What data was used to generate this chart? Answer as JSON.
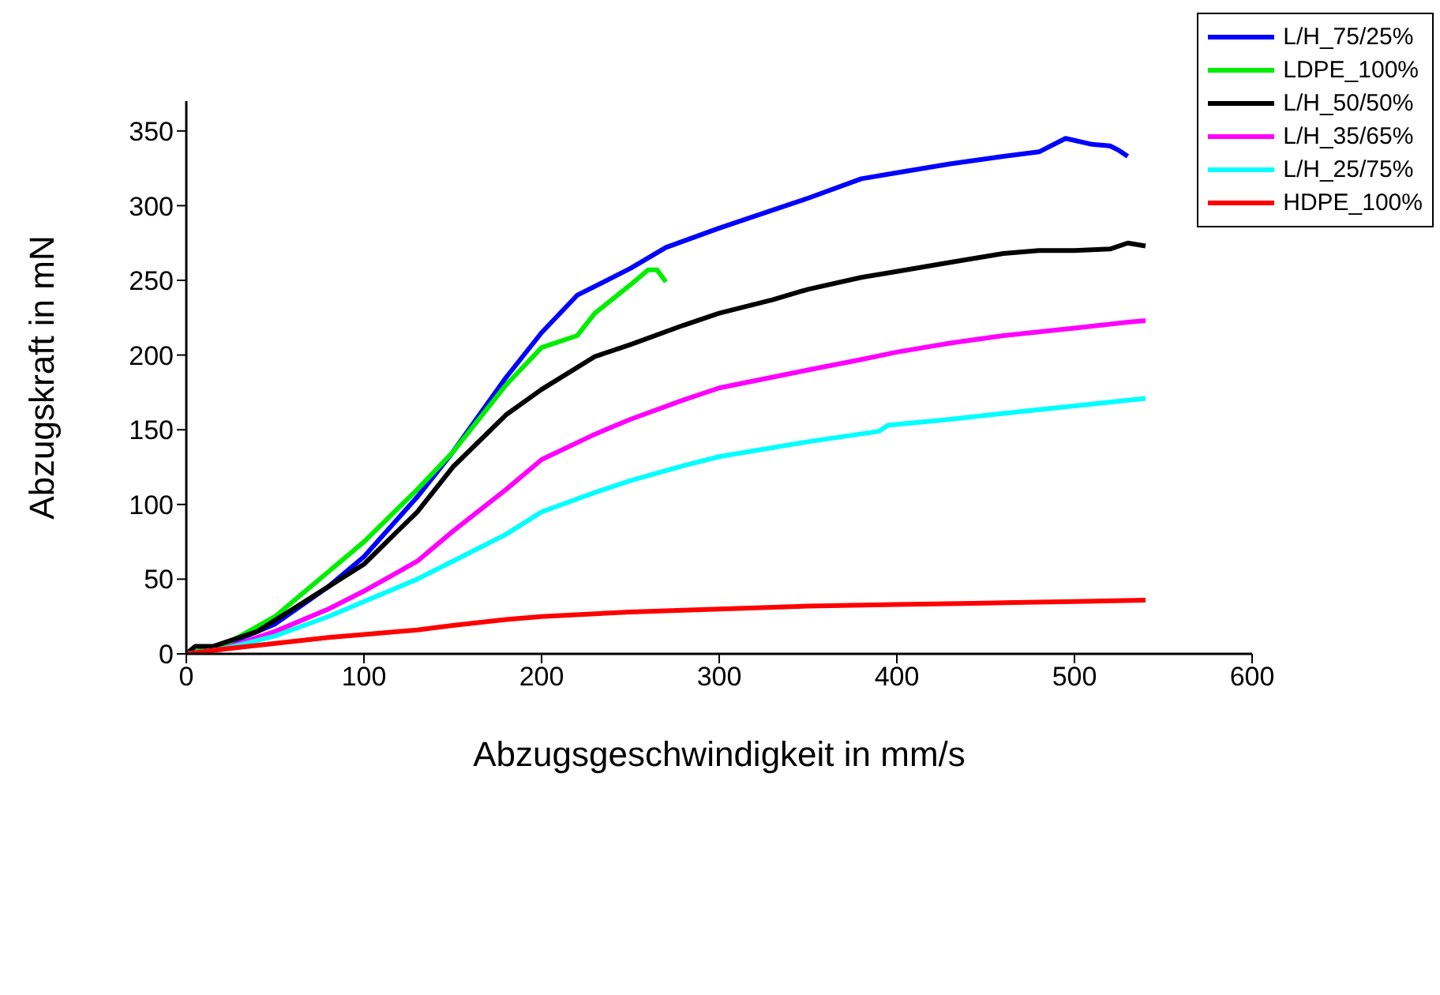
{
  "chart_data": {
    "type": "line",
    "xlabel": "Abzugsgeschwindigkeit in mm/s",
    "ylabel": "Abzugskraft in mN",
    "xlim": [
      0,
      600
    ],
    "xticks": [
      0,
      100,
      200,
      300,
      400,
      500,
      600
    ],
    "ylim": [
      0,
      370
    ],
    "yticks": [
      0,
      50,
      100,
      150,
      200,
      250,
      300,
      350
    ],
    "grid": false,
    "legend": "top right",
    "marker": "none",
    "line_style": "solid",
    "series": [
      {
        "name": "L/H_75/25%",
        "color": "#0000ff",
        "x": [
          0,
          20,
          50,
          80,
          100,
          130,
          150,
          180,
          200,
          220,
          250,
          270,
          300,
          330,
          350,
          380,
          400,
          430,
          460,
          480,
          495,
          510,
          520,
          525,
          530
        ],
        "values": [
          0,
          5,
          20,
          45,
          65,
          105,
          135,
          185,
          215,
          240,
          258,
          272,
          285,
          297,
          305,
          318,
          322,
          328,
          333,
          336,
          345,
          341,
          340,
          337,
          333
        ]
      },
      {
        "name": "LDPE_100%",
        "color": "#00ee00",
        "x": [
          0,
          20,
          50,
          80,
          100,
          130,
          150,
          180,
          200,
          220,
          230,
          250,
          260,
          265,
          270
        ],
        "values": [
          0,
          5,
          25,
          55,
          75,
          110,
          135,
          180,
          205,
          213,
          228,
          247,
          257,
          257,
          249
        ]
      },
      {
        "name": "L/H_50/50%",
        "color": "#000000",
        "x": [
          0,
          5,
          15,
          40,
          60,
          80,
          100,
          130,
          150,
          180,
          200,
          230,
          250,
          280,
          300,
          330,
          350,
          380,
          400,
          430,
          460,
          480,
          500,
          520,
          530,
          540
        ],
        "values": [
          0,
          5,
          5,
          15,
          30,
          45,
          60,
          95,
          125,
          160,
          177,
          199,
          207,
          220,
          228,
          237,
          244,
          252,
          256,
          262,
          268,
          270,
          270,
          271,
          275,
          273
        ]
      },
      {
        "name": "L/H_35/65%",
        "color": "#ff00ff",
        "x": [
          0,
          20,
          50,
          80,
          100,
          130,
          150,
          180,
          200,
          230,
          250,
          280,
          300,
          350,
          380,
          400,
          430,
          460,
          500,
          530,
          540
        ],
        "values": [
          0,
          3,
          15,
          30,
          42,
          62,
          82,
          110,
          130,
          147,
          157,
          170,
          178,
          190,
          197,
          202,
          208,
          213,
          218,
          222,
          223
        ]
      },
      {
        "name": "L/H_25/75%",
        "color": "#00ffff",
        "x": [
          0,
          20,
          50,
          80,
          100,
          130,
          150,
          180,
          200,
          230,
          250,
          280,
          300,
          350,
          390,
          395,
          430,
          460,
          500,
          540
        ],
        "values": [
          0,
          3,
          12,
          25,
          35,
          50,
          62,
          80,
          95,
          108,
          116,
          126,
          132,
          142,
          149,
          153,
          157,
          161,
          166,
          171
        ]
      },
      {
        "name": "HDPE_100%",
        "color": "#ff0000",
        "x": [
          0,
          20,
          50,
          80,
          100,
          130,
          150,
          180,
          200,
          250,
          300,
          350,
          400,
          450,
          500,
          540
        ],
        "values": [
          0,
          3,
          7,
          11,
          13,
          16,
          19,
          23,
          25,
          28,
          30,
          32,
          33,
          34,
          35,
          36
        ]
      }
    ]
  }
}
